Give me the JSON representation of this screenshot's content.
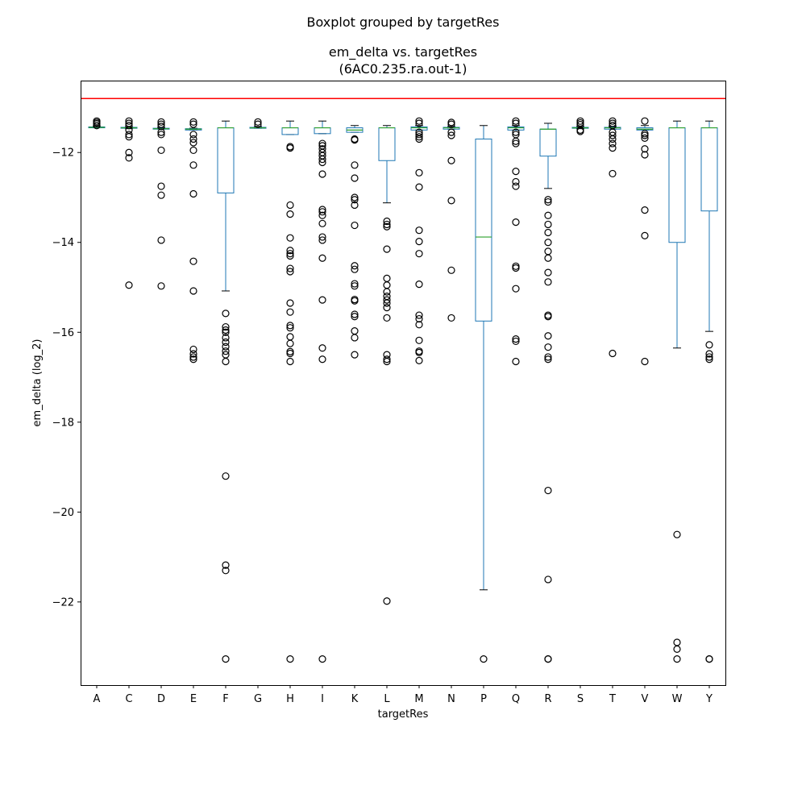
{
  "figure": {
    "suptitle": "Boxplot grouped by targetRes",
    "title_line1": "em_delta vs. targetRes",
    "title_line2": "(6AC0.235.ra.out-1)"
  },
  "colors": {
    "box": "#1f77b4",
    "median": "#2ca02c",
    "reference_line": "#ff0000",
    "flier": "#000000"
  },
  "chart_data": {
    "type": "boxplot",
    "xlabel": "targetRes",
    "ylabel": "em_delta (log_2)",
    "ylim": [
      -23.85,
      -10.4
    ],
    "yticks": [
      -12,
      -14,
      -16,
      -18,
      -20,
      -22
    ],
    "ytick_labels": [
      "−12",
      "−14",
      "−16",
      "−18",
      "−20",
      "−22"
    ],
    "reference_line_y": -10.8,
    "grid": false,
    "categories": [
      "A",
      "C",
      "D",
      "E",
      "F",
      "G",
      "H",
      "I",
      "K",
      "L",
      "M",
      "N",
      "P",
      "Q",
      "R",
      "S",
      "T",
      "V",
      "W",
      "Y"
    ],
    "boxes": [
      {
        "label": "A",
        "whislo": -11.45,
        "q1": -11.45,
        "med": -11.44,
        "q3": -11.43,
        "whishi": -11.42,
        "fliers": [
          -11.3,
          -11.33,
          -11.36,
          -11.4
        ]
      },
      {
        "label": "C",
        "whislo": -11.47,
        "q1": -11.46,
        "med": -11.45,
        "q3": -11.44,
        "whishi": -11.43,
        "fliers": [
          -11.3,
          -11.35,
          -11.4,
          -11.5,
          -11.6,
          -11.65,
          -12.0,
          -12.12,
          -14.95
        ]
      },
      {
        "label": "D",
        "whislo": -11.48,
        "q1": -11.48,
        "med": -11.47,
        "q3": -11.46,
        "whishi": -11.45,
        "fliers": [
          -11.32,
          -11.37,
          -11.42,
          -11.55,
          -11.6,
          -11.95,
          -12.75,
          -12.95,
          -13.95,
          -14.97
        ]
      },
      {
        "label": "E",
        "whislo": -11.5,
        "q1": -11.5,
        "med": -11.48,
        "q3": -11.47,
        "whishi": -11.46,
        "fliers": [
          -11.32,
          -11.37,
          -11.6,
          -11.7,
          -11.78,
          -11.95,
          -12.28,
          -12.92,
          -14.42,
          -15.08,
          -16.38,
          -16.48,
          -16.55,
          -16.6
        ]
      },
      {
        "label": "F",
        "whislo": -15.08,
        "q1": -12.9,
        "med": -11.45,
        "q3": -11.45,
        "whishi": -11.3,
        "fliers": [
          -15.58,
          -15.88,
          -15.95,
          -16.0,
          -16.12,
          -16.22,
          -16.32,
          -16.42,
          -16.5,
          -16.65,
          -19.2,
          -21.18,
          -21.3,
          -23.27
        ]
      },
      {
        "label": "G",
        "whislo": -11.46,
        "q1": -11.46,
        "med": -11.45,
        "q3": -11.44,
        "whishi": -11.42,
        "fliers": [
          -11.32,
          -11.37
        ]
      },
      {
        "label": "H",
        "whislo": -11.6,
        "q1": -11.6,
        "med": -11.45,
        "q3": -11.45,
        "whishi": -11.3,
        "fliers": [
          -11.87,
          -11.9,
          -13.17,
          -13.37,
          -13.9,
          -14.18,
          -14.25,
          -14.3,
          -14.58,
          -14.65,
          -15.35,
          -15.55,
          -15.85,
          -15.9,
          -16.1,
          -16.25,
          -16.43,
          -16.47,
          -16.65,
          -23.27
        ]
      },
      {
        "label": "I",
        "whislo": -11.58,
        "q1": -11.58,
        "med": -11.45,
        "q3": -11.45,
        "whishi": -11.3,
        "fliers": [
          -11.8,
          -11.85,
          -11.92,
          -12.0,
          -12.07,
          -12.15,
          -12.22,
          -12.48,
          -13.27,
          -13.32,
          -13.4,
          -13.58,
          -13.88,
          -13.95,
          -14.35,
          -15.28,
          -16.35,
          -16.6,
          -23.27
        ]
      },
      {
        "label": "K",
        "whislo": -11.55,
        "q1": -11.55,
        "med": -11.5,
        "q3": -11.45,
        "whishi": -11.4,
        "fliers": [
          -11.7,
          -11.72,
          -12.28,
          -12.57,
          -13.0,
          -13.05,
          -13.17,
          -13.62,
          -14.52,
          -14.6,
          -14.92,
          -14.97,
          -15.27,
          -15.3,
          -15.6,
          -15.65,
          -15.97,
          -16.12,
          -16.5
        ]
      },
      {
        "label": "L",
        "whislo": -13.12,
        "q1": -12.18,
        "med": -11.45,
        "q3": -11.45,
        "whishi": -11.4,
        "fliers": [
          -13.53,
          -13.6,
          -13.65,
          -14.15,
          -14.8,
          -14.95,
          -15.1,
          -15.2,
          -15.28,
          -15.35,
          -15.45,
          -15.68,
          -16.5,
          -16.6,
          -16.65,
          -21.98
        ]
      },
      {
        "label": "M",
        "whislo": -11.5,
        "q1": -11.5,
        "med": -11.45,
        "q3": -11.43,
        "whishi": -11.4,
        "fliers": [
          -11.3,
          -11.35,
          -11.55,
          -11.6,
          -11.65,
          -11.7,
          -12.45,
          -12.77,
          -13.73,
          -13.98,
          -14.25,
          -14.93,
          -15.62,
          -15.7,
          -15.83,
          -16.18,
          -16.42,
          -16.45,
          -16.63
        ]
      },
      {
        "label": "N",
        "whislo": -11.48,
        "q1": -11.48,
        "med": -11.45,
        "q3": -11.44,
        "whishi": -11.42,
        "fliers": [
          -11.33,
          -11.37,
          -11.55,
          -11.62,
          -12.18,
          -13.07,
          -14.62,
          -15.68
        ]
      },
      {
        "label": "P",
        "whislo": -21.73,
        "q1": -15.75,
        "med": -13.88,
        "q3": -11.7,
        "whishi": -11.4,
        "fliers": [
          -23.27
        ]
      },
      {
        "label": "Q",
        "whislo": -11.5,
        "q1": -11.5,
        "med": -11.45,
        "q3": -11.43,
        "whishi": -11.4,
        "fliers": [
          -11.3,
          -11.35,
          -11.55,
          -11.6,
          -11.75,
          -11.8,
          -12.42,
          -12.65,
          -12.75,
          -13.55,
          -14.53,
          -14.57,
          -15.03,
          -16.15,
          -16.2,
          -16.65
        ]
      },
      {
        "label": "R",
        "whislo": -12.8,
        "q1": -12.08,
        "med": -11.48,
        "q3": -11.48,
        "whishi": -11.35,
        "fliers": [
          -13.05,
          -13.1,
          -13.4,
          -13.6,
          -13.78,
          -14.0,
          -14.2,
          -14.35,
          -14.67,
          -14.88,
          -15.62,
          -15.65,
          -16.08,
          -16.33,
          -16.55,
          -16.6,
          -19.52,
          -21.5,
          -23.27,
          -23.27
        ]
      },
      {
        "label": "S",
        "whislo": -11.47,
        "q1": -11.46,
        "med": -11.45,
        "q3": -11.44,
        "whishi": -11.42,
        "fliers": [
          -11.3,
          -11.34,
          -11.38,
          -11.5,
          -11.53
        ]
      },
      {
        "label": "T",
        "whislo": -11.48,
        "q1": -11.48,
        "med": -11.45,
        "q3": -11.44,
        "whishi": -11.42,
        "fliers": [
          -11.3,
          -11.35,
          -11.4,
          -11.55,
          -11.62,
          -11.7,
          -11.8,
          -11.9,
          -12.47,
          -16.47
        ]
      },
      {
        "label": "V",
        "whislo": -11.5,
        "q1": -11.5,
        "med": -11.48,
        "q3": -11.45,
        "whishi": -11.4,
        "fliers": [
          -11.3,
          -11.58,
          -11.62,
          -11.68,
          -11.92,
          -12.05,
          -13.28,
          -13.85,
          -16.65
        ]
      },
      {
        "label": "W",
        "whislo": -16.35,
        "q1": -14.0,
        "med": -11.45,
        "q3": -11.45,
        "whishi": -11.3,
        "fliers": [
          -20.5,
          -22.9,
          -23.05,
          -23.27
        ]
      },
      {
        "label": "Y",
        "whislo": -15.98,
        "q1": -13.3,
        "med": -11.45,
        "q3": -11.45,
        "whishi": -11.3,
        "fliers": [
          -16.28,
          -16.48,
          -16.55,
          -16.6,
          -23.27,
          -23.27
        ]
      }
    ]
  }
}
